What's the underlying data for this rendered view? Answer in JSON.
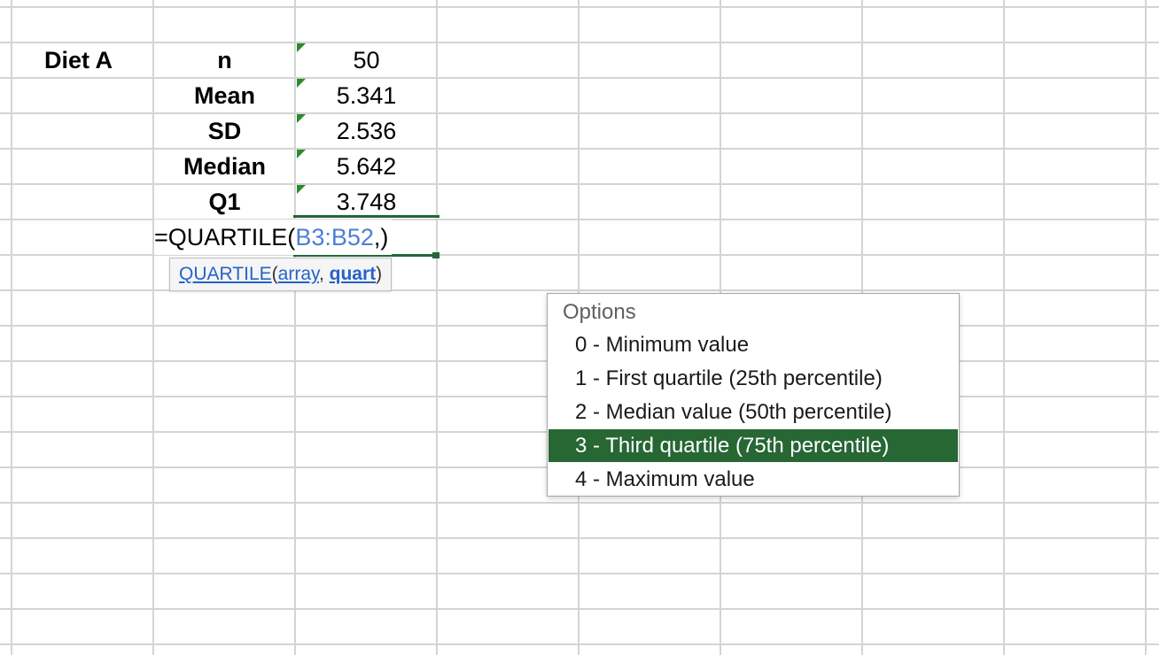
{
  "table": {
    "group_label": "Diet A",
    "stat_labels": [
      "n",
      "Mean",
      "SD",
      "Median",
      "Q1"
    ],
    "stat_values": [
      "50",
      "5.341",
      "2.536",
      "5.642",
      "3.748"
    ]
  },
  "formula_bar": {
    "prefix": "=QUARTILE(",
    "range_ref": "B3:B52",
    "suffix": ",)"
  },
  "tooltip": {
    "function_name": "QUARTILE",
    "open_paren": "(",
    "arg1": "array",
    "separator": ", ",
    "arg2": "quart",
    "close_paren": ")"
  },
  "dropdown": {
    "header": "Options",
    "options": [
      "0 - Minimum value",
      "1 - First quartile (25th percentile)",
      "2 - Median value (50th percentile)",
      "3 - Third quartile (75th percentile)",
      "4 - Maximum value"
    ],
    "selected_index": 3
  },
  "colors": {
    "accent_green": "#266734",
    "reference_blue": "#4a7fd6",
    "gridline": "#d4d4d4"
  }
}
